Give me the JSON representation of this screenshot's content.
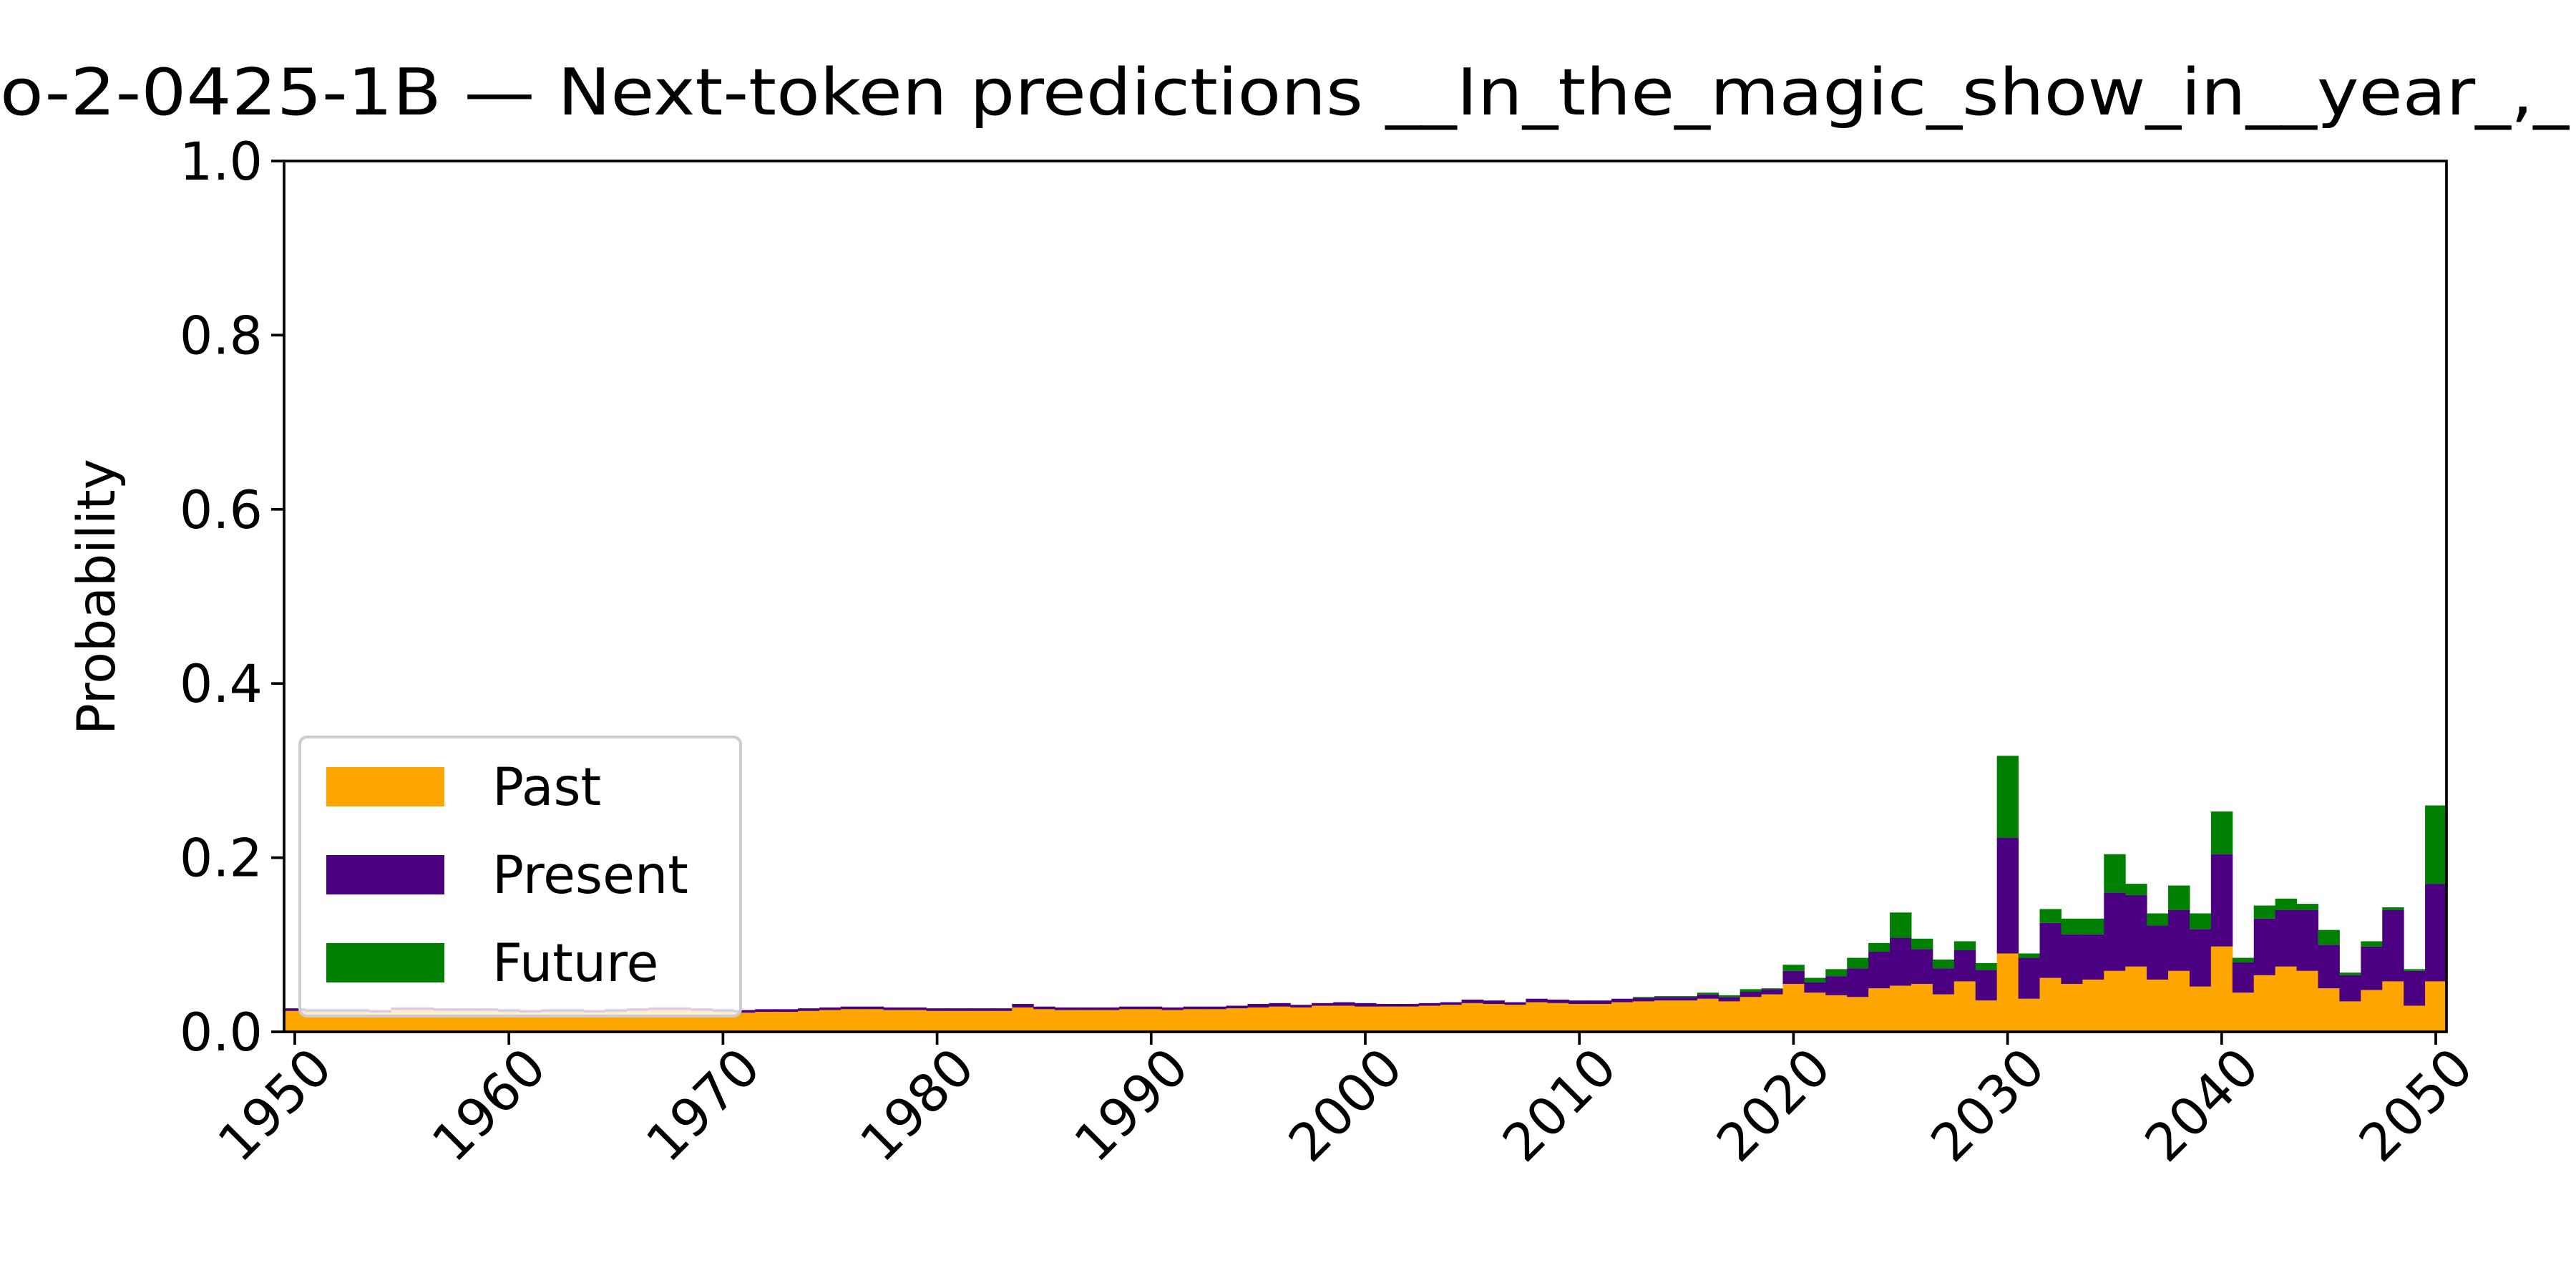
{
  "chart_data": {
    "type": "stacked_bar",
    "title": "o-2-0425-1B — Next-token predictions __In_the_magic_show_in__year_,_",
    "y_label": "Probability",
    "x": [
      1950,
      1951,
      1952,
      1953,
      1954,
      1955,
      1956,
      1957,
      1958,
      1959,
      1960,
      1961,
      1962,
      1963,
      1964,
      1965,
      1966,
      1967,
      1968,
      1969,
      1970,
      1971,
      1972,
      1973,
      1974,
      1975,
      1976,
      1977,
      1978,
      1979,
      1980,
      1981,
      1982,
      1983,
      1984,
      1985,
      1986,
      1987,
      1988,
      1989,
      1990,
      1991,
      1992,
      1993,
      1994,
      1995,
      1996,
      1997,
      1998,
      1999,
      2000,
      2001,
      2002,
      2003,
      2004,
      2005,
      2006,
      2007,
      2008,
      2009,
      2010,
      2011,
      2012,
      2013,
      2014,
      2015,
      2016,
      2017,
      2018,
      2019,
      2020,
      2021,
      2022,
      2023,
      2024,
      2025,
      2026,
      2027,
      2028,
      2029,
      2030,
      2031,
      2032,
      2033,
      2034,
      2035,
      2036,
      2037,
      2038,
      2039,
      2040,
      2041,
      2042,
      2043,
      2044,
      2045,
      2046,
      2047,
      2048,
      2049,
      2050
    ],
    "series": [
      {
        "name": "Past",
        "color": "#ffa500",
        "values": [
          0.024,
          0.023,
          0.023,
          0.023,
          0.022,
          0.025,
          0.025,
          0.024,
          0.024,
          0.024,
          0.023,
          0.022,
          0.023,
          0.023,
          0.022,
          0.023,
          0.024,
          0.025,
          0.025,
          0.024,
          0.023,
          0.022,
          0.023,
          0.023,
          0.024,
          0.025,
          0.026,
          0.026,
          0.025,
          0.025,
          0.024,
          0.024,
          0.024,
          0.024,
          0.028,
          0.026,
          0.025,
          0.025,
          0.025,
          0.026,
          0.026,
          0.025,
          0.026,
          0.026,
          0.027,
          0.028,
          0.029,
          0.028,
          0.03,
          0.03,
          0.029,
          0.029,
          0.029,
          0.03,
          0.031,
          0.033,
          0.032,
          0.031,
          0.034,
          0.033,
          0.032,
          0.032,
          0.034,
          0.035,
          0.036,
          0.036,
          0.038,
          0.035,
          0.04,
          0.043,
          0.055,
          0.045,
          0.042,
          0.04,
          0.05,
          0.053,
          0.055,
          0.043,
          0.058,
          0.036,
          0.09,
          0.038,
          0.062,
          0.055,
          0.06,
          0.07,
          0.075,
          0.06,
          0.07,
          0.052,
          0.098,
          0.045,
          0.065,
          0.075,
          0.07,
          0.05,
          0.035,
          0.048,
          0.058,
          0.03,
          0.058
        ]
      },
      {
        "name": "Present",
        "color": "#4b0082",
        "values": [
          0.003,
          0.003,
          0.003,
          0.003,
          0.003,
          0.003,
          0.003,
          0.003,
          0.003,
          0.003,
          0.003,
          0.003,
          0.003,
          0.003,
          0.003,
          0.003,
          0.003,
          0.003,
          0.003,
          0.003,
          0.003,
          0.003,
          0.003,
          0.003,
          0.003,
          0.003,
          0.003,
          0.003,
          0.003,
          0.003,
          0.003,
          0.003,
          0.003,
          0.003,
          0.004,
          0.003,
          0.003,
          0.003,
          0.003,
          0.003,
          0.003,
          0.003,
          0.003,
          0.003,
          0.003,
          0.004,
          0.004,
          0.003,
          0.003,
          0.004,
          0.004,
          0.003,
          0.003,
          0.003,
          0.003,
          0.004,
          0.004,
          0.003,
          0.004,
          0.004,
          0.004,
          0.004,
          0.004,
          0.004,
          0.004,
          0.004,
          0.005,
          0.005,
          0.006,
          0.006,
          0.015,
          0.012,
          0.022,
          0.033,
          0.042,
          0.055,
          0.04,
          0.03,
          0.036,
          0.035,
          0.133,
          0.047,
          0.063,
          0.057,
          0.052,
          0.09,
          0.082,
          0.062,
          0.07,
          0.066,
          0.106,
          0.035,
          0.065,
          0.065,
          0.07,
          0.05,
          0.03,
          0.05,
          0.082,
          0.04,
          0.112
        ]
      },
      {
        "name": "Future",
        "color": "#008000",
        "values": [
          0,
          0,
          0,
          0,
          0,
          0,
          0,
          0,
          0,
          0,
          0,
          0,
          0,
          0,
          0,
          0,
          0,
          0,
          0,
          0,
          0,
          0,
          0,
          0,
          0,
          0,
          0,
          0,
          0,
          0,
          0,
          0,
          0,
          0,
          0,
          0,
          0,
          0,
          0,
          0,
          0,
          0,
          0,
          0,
          0,
          0,
          0,
          0,
          0,
          0,
          0,
          0,
          0,
          0,
          0,
          0,
          0,
          0,
          0,
          0,
          0,
          0,
          0,
          0.001,
          0.001,
          0.001,
          0.002,
          0.002,
          0.003,
          0.001,
          0.007,
          0.005,
          0.008,
          0.012,
          0.01,
          0.029,
          0.012,
          0.01,
          0.01,
          0.008,
          0.094,
          0.005,
          0.016,
          0.018,
          0.018,
          0.044,
          0.013,
          0.014,
          0.028,
          0.018,
          0.049,
          0.005,
          0.015,
          0.013,
          0.007,
          0.017,
          0.003,
          0.006,
          0.003,
          0.002,
          0.09
        ]
      }
    ],
    "xlim": [
      1949.5,
      2050.5
    ],
    "xticks": [
      1950,
      1960,
      1970,
      1980,
      1990,
      2000,
      2010,
      2020,
      2030,
      2040,
      2050
    ],
    "ylim": [
      0,
      1
    ],
    "yticks": [
      {
        "value": 0,
        "label": "0.0"
      },
      0.2,
      0.4,
      0.6,
      0.8,
      {
        "value": 1,
        "label": "1.0"
      }
    ],
    "legend": "lower left"
  }
}
